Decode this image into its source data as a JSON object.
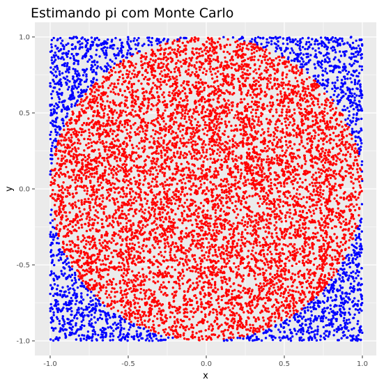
{
  "chart_data": {
    "type": "scatter",
    "title": "Estimando pi com Monte Carlo",
    "xlabel": "x",
    "ylabel": "y",
    "xlim": [
      -1.1,
      1.1
    ],
    "ylim": [
      -1.1,
      1.1
    ],
    "x_ticks": [
      "-1.0",
      "-0.5",
      "0.0",
      "0.5",
      "1.0"
    ],
    "y_ticks": [
      "-1.0",
      "-0.5",
      "0.0",
      "0.5",
      "1.0"
    ],
    "x_tick_values": [
      -1.0,
      -0.5,
      0.0,
      0.5,
      1.0
    ],
    "y_tick_values": [
      -1.0,
      -0.5,
      0.0,
      0.5,
      1.0
    ],
    "grid": true,
    "legend": "none",
    "panel_background": "#ebebeb",
    "grid_major_color": "#ffffff",
    "series": [
      {
        "color": "#ff0000",
        "rule": "inside unit circle"
      },
      {
        "color": "#0000ff",
        "rule": "outside unit circle"
      }
    ],
    "points": {
      "count": 10000,
      "distribution": "uniform",
      "x_range": [
        -1,
        1
      ],
      "y_range": [
        -1,
        1
      ]
    }
  }
}
